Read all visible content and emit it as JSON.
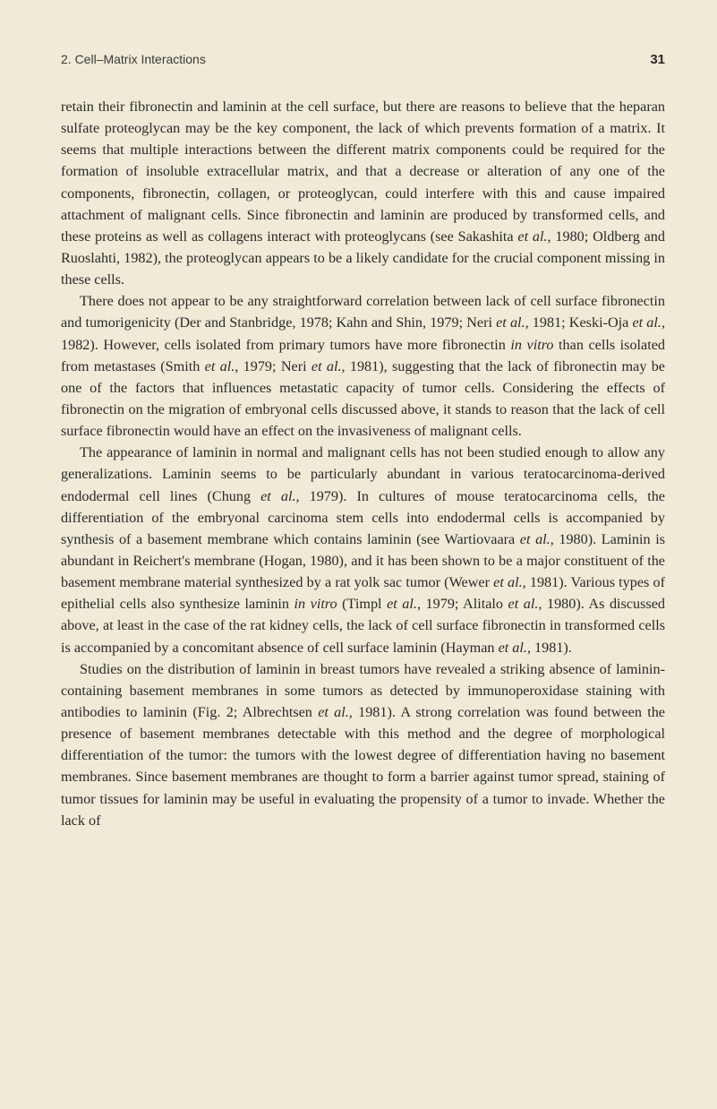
{
  "header": {
    "chapter_title": "2. Cell–Matrix Interactions",
    "page_number": "31"
  },
  "paragraphs": {
    "p1_part1": "retain their fibronectin and laminin at the cell surface, but there are reasons to believe that the heparan sulfate proteoglycan may be the key component, the lack of which prevents formation of a matrix. It seems that multiple interactions between the different matrix components could be required for the formation of insoluble extracellular matrix, and that a decrease or alteration of any one of the components, fibronectin, collagen, or proteoglycan, could interfere with this and cause impaired attachment of malignant cells. Since fibronectin and laminin are produced by transformed cells, and these proteins as well as collagens interact with proteoglycans (see Sakashita ",
    "p1_italic1": "et al.",
    "p1_part2": ", 1980; Oldberg and Ruoslahti, 1982), the proteoglycan appears to be a likely candidate for the crucial component missing in these cells.",
    "p2_part1": "There does not appear to be any straightforward correlation between lack of cell surface fibronectin and tumorigenicity (Der and Stanbridge, 1978; Kahn and Shin, 1979; Neri ",
    "p2_italic1": "et al.",
    "p2_part2": ", 1981; Keski-Oja ",
    "p2_italic2": "et al.",
    "p2_part3": ", 1982). However, cells isolated from primary tumors have more fibronectin ",
    "p2_italic3": "in vitro",
    "p2_part4": " than cells isolated from metastases (Smith ",
    "p2_italic4": "et al.",
    "p2_part5": ", 1979; Neri ",
    "p2_italic5": "et al.",
    "p2_part6": ", 1981), suggesting that the lack of fibronectin may be one of the factors that influences metastatic capacity of tumor cells. Considering the effects of fibronectin on the migration of embryonal cells discussed above, it stands to reason that the lack of cell surface fibronectin would have an effect on the invasiveness of malignant cells.",
    "p3_part1": "The appearance of laminin in normal and malignant cells has not been studied enough to allow any generalizations. Laminin seems to be particularly abundant in various teratocarcinoma-derived endodermal cell lines (Chung ",
    "p3_italic1": "et al.",
    "p3_part2": ", 1979). In cultures of mouse teratocarcinoma cells, the differentiation of the embryonal carcinoma stem cells into endodermal cells is accompanied by synthesis of a basement membrane which contains laminin (see Wartiovaara ",
    "p3_italic2": "et al.",
    "p3_part3": ", 1980). Laminin is abundant in Reichert's membrane (Hogan, 1980), and it has been shown to be a major constituent of the basement membrane material synthesized by a rat yolk sac tumor (Wewer ",
    "p3_italic3": "et al.",
    "p3_part4": ", 1981). Various types of epithelial cells also synthesize laminin ",
    "p3_italic4": "in vitro",
    "p3_part5": " (Timpl ",
    "p3_italic5": "et al.",
    "p3_part6": ", 1979; Alitalo ",
    "p3_italic6": "et al.",
    "p3_part7": ", 1980). As discussed above, at least in the case of the rat kidney cells, the lack of cell surface fibronectin in transformed cells is accompanied by a concomitant absence of cell surface laminin (Hayman ",
    "p3_italic7": "et al.",
    "p3_part8": ", 1981).",
    "p4_part1": "Studies on the distribution of laminin in breast tumors have revealed a striking absence of laminin-containing basement membranes in some tumors as detected by immunoperoxidase staining with antibodies to laminin (Fig. 2; Albrechtsen ",
    "p4_italic1": "et al.",
    "p4_part2": ", 1981). A strong correlation was found between the presence of basement membranes detectable with this method and the degree of morphological differentiation of the tumor: the tumors with the lowest degree of differentiation having no basement membranes. Since basement membranes are thought to form a barrier against tumor spread, staining of tumor tissues for laminin may be useful in evaluating the propensity of a tumor to invade. Whether the lack of"
  }
}
